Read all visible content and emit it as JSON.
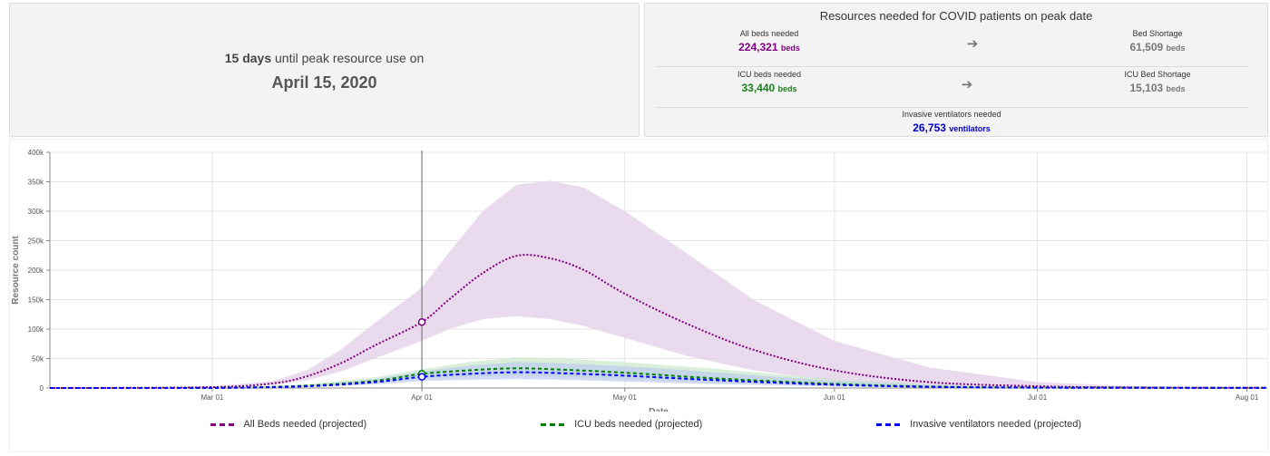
{
  "peak": {
    "days": "15 days",
    "text": "until peak resource use on",
    "date": "April 15, 2020"
  },
  "resources": {
    "title": "Resources needed for COVID patients on peak date",
    "all_beds": {
      "label": "All beds needed",
      "value": "224,321",
      "unit": "beds",
      "color": "#800080"
    },
    "bed_shortage": {
      "label": "Bed Shortage",
      "value": "61,509",
      "unit": "beds",
      "color": "#777777"
    },
    "icu_beds": {
      "label": "ICU beds needed",
      "value": "33,440",
      "unit": "beds",
      "color": "#1e7b1e"
    },
    "icu_shortage": {
      "label": "ICU Bed Shortage",
      "value": "15,103",
      "unit": "beds",
      "color": "#777777"
    },
    "ventilators": {
      "label": "Invasive ventilators needed",
      "value": "26,753",
      "unit": "ventilators",
      "color": "#0000cc"
    },
    "arrow_icon": "right-arrow-icon"
  },
  "chart_data": {
    "type": "line",
    "xlabel": "Date",
    "ylabel": "Resource count",
    "ylim": [
      0,
      400000
    ],
    "xlim": [
      "2020-02-06",
      "2020-08-04"
    ],
    "y_ticks": [
      0,
      50000,
      100000,
      150000,
      200000,
      250000,
      300000,
      350000,
      400000
    ],
    "y_tick_labels": [
      "0",
      "50k",
      "100k",
      "150k",
      "200k",
      "250k",
      "300k",
      "350k",
      "400k"
    ],
    "x_ticks": [
      "2020-03-01",
      "2020-04-01",
      "2020-05-01",
      "2020-06-01",
      "2020-07-01",
      "2020-08-01"
    ],
    "x_tick_labels": [
      "Mar 01",
      "Apr 01",
      "May 01",
      "Jun 01",
      "Jul 01",
      "Aug 01"
    ],
    "grid": true,
    "legend_position": "bottom",
    "marker_date": "2020-04-01",
    "series": [
      {
        "name": "All Beds needed (projected)",
        "color": "#800080",
        "band_color": "#e6d3ea",
        "x": [
          "2020-02-06",
          "2020-03-01",
          "2020-03-10",
          "2020-03-15",
          "2020-03-20",
          "2020-03-25",
          "2020-04-01",
          "2020-04-05",
          "2020-04-10",
          "2020-04-15",
          "2020-04-20",
          "2020-04-25",
          "2020-05-01",
          "2020-05-10",
          "2020-05-20",
          "2020-06-01",
          "2020-06-15",
          "2020-07-01",
          "2020-07-15",
          "2020-08-04"
        ],
        "values": [
          0,
          1500,
          8000,
          20000,
          42000,
          72000,
          112000,
          150000,
          195000,
          224321,
          220000,
          200000,
          160000,
          110000,
          65000,
          30000,
          10000,
          3000,
          1000,
          500
        ],
        "lower": [
          0,
          800,
          5000,
          13000,
          28000,
          50000,
          80000,
          100000,
          117000,
          122000,
          117000,
          105000,
          85000,
          55000,
          30000,
          12000,
          4000,
          1000,
          300,
          100
        ],
        "upper": [
          0,
          2500,
          12000,
          30000,
          65000,
          110000,
          170000,
          230000,
          300000,
          345000,
          352000,
          340000,
          300000,
          230000,
          150000,
          80000,
          35000,
          10000,
          3000,
          1000
        ]
      },
      {
        "name": "ICU beds needed (projected)",
        "color": "#008000",
        "band_color": "#c6e6c6",
        "x": [
          "2020-02-06",
          "2020-03-01",
          "2020-03-15",
          "2020-03-25",
          "2020-04-01",
          "2020-04-08",
          "2020-04-15",
          "2020-04-22",
          "2020-05-01",
          "2020-05-15",
          "2020-06-01",
          "2020-06-15",
          "2020-07-01",
          "2020-08-04"
        ],
        "values": [
          0,
          200,
          4000,
          12000,
          24000,
          30000,
          33440,
          31000,
          26000,
          16000,
          7000,
          2500,
          800,
          100
        ],
        "lower": [
          0,
          100,
          2500,
          8000,
          16000,
          19000,
          21000,
          19000,
          15000,
          9000,
          3500,
          1200,
          400,
          50
        ],
        "upper": [
          0,
          400,
          6000,
          18000,
          32000,
          44000,
          52000,
          50000,
          44000,
          32000,
          15000,
          6000,
          2000,
          300
        ]
      },
      {
        "name": "Invasive ventilators needed (projected)",
        "color": "#0000ff",
        "band_color": "#b8c8ee",
        "x": [
          "2020-02-06",
          "2020-03-01",
          "2020-03-15",
          "2020-03-25",
          "2020-04-01",
          "2020-04-08",
          "2020-04-15",
          "2020-04-22",
          "2020-05-01",
          "2020-05-15",
          "2020-06-01",
          "2020-06-15",
          "2020-07-01",
          "2020-08-04"
        ],
        "values": [
          0,
          150,
          3000,
          10000,
          19000,
          24000,
          26753,
          25000,
          21000,
          13000,
          5500,
          2000,
          600,
          100
        ],
        "lower": [
          0,
          80,
          1800,
          6000,
          12000,
          14000,
          15000,
          14000,
          11000,
          6500,
          2500,
          900,
          300,
          50
        ],
        "upper": [
          0,
          300,
          5000,
          15000,
          28000,
          38000,
          44000,
          42000,
          37000,
          26000,
          12000,
          5000,
          1500,
          300
        ]
      }
    ],
    "markers": [
      {
        "series": "All Beds needed (projected)",
        "x": "2020-04-01",
        "y": 112000
      },
      {
        "series": "ICU beds needed (projected)",
        "x": "2020-04-01",
        "y": 24000
      },
      {
        "series": "Invasive ventilators needed (projected)",
        "x": "2020-04-01",
        "y": 19000
      }
    ]
  }
}
